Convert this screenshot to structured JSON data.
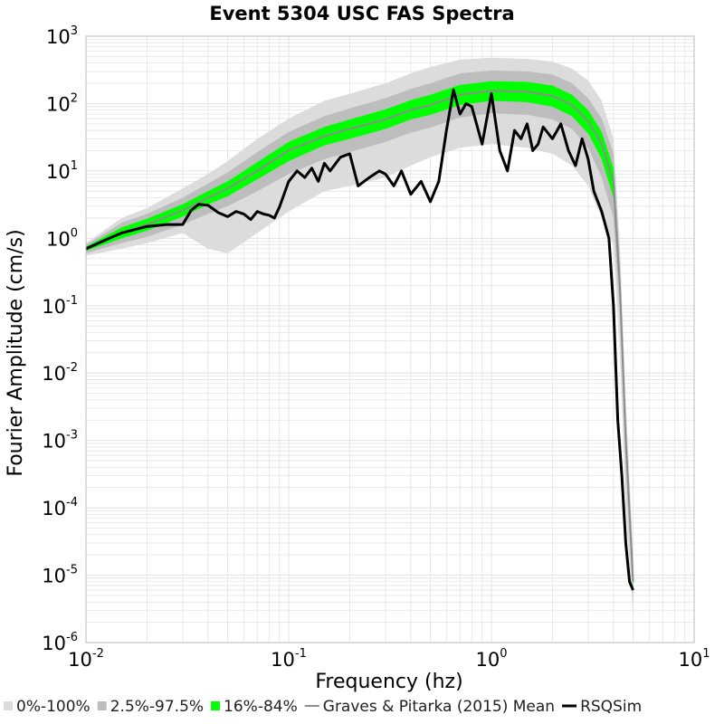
{
  "chart_data": {
    "type": "line",
    "title": "Event 5304 USC FAS Spectra",
    "xlabel": "Frequency (hz)",
    "ylabel": "Fourier Amplitude (cm/s)",
    "x_scale": "log",
    "y_scale": "log",
    "xlim": [
      0.01,
      10
    ],
    "ylim": [
      1e-06,
      1000
    ],
    "grid": true,
    "legend_position": "bottom",
    "x_ticks": [
      {
        "base": "10",
        "exp": "-2"
      },
      {
        "base": "10",
        "exp": "-1"
      },
      {
        "base": "10",
        "exp": "0"
      },
      {
        "base": "10",
        "exp": "1"
      }
    ],
    "y_ticks": [
      {
        "base": "10",
        "exp": "-6"
      },
      {
        "base": "10",
        "exp": "-5"
      },
      {
        "base": "10",
        "exp": "-4"
      },
      {
        "base": "10",
        "exp": "-3"
      },
      {
        "base": "10",
        "exp": "-2"
      },
      {
        "base": "10",
        "exp": "-1"
      },
      {
        "base": "10",
        "exp": "0"
      },
      {
        "base": "10",
        "exp": "1"
      },
      {
        "base": "10",
        "exp": "2"
      },
      {
        "base": "10",
        "exp": "3"
      }
    ],
    "colors": {
      "band_0_100": "#dcdcdc",
      "band_2_5_97_5": "#bdbdbd",
      "band_16_84": "#00ff00",
      "gp_mean": "#8c8c8c",
      "rsqsim": "#000000",
      "grid": "#e3e3e3"
    },
    "legend": [
      {
        "label": "0%-100%",
        "swatch": "square",
        "color": "#dcdcdc"
      },
      {
        "label": "2.5%-97.5%",
        "swatch": "square",
        "color": "#bdbdbd"
      },
      {
        "label": "16%-84%",
        "swatch": "square",
        "color": "#00ff00"
      },
      {
        "label": "Graves & Pitarka (2015) Mean",
        "swatch": "line",
        "color": "#8c8c8c"
      },
      {
        "label": "RSQSim",
        "swatch": "line",
        "color": "#000000"
      }
    ],
    "series": [
      {
        "name": "Graves & Pitarka (2015) Mean",
        "x": [
          0.01,
          0.015,
          0.02,
          0.03,
          0.04,
          0.05,
          0.07,
          0.1,
          0.15,
          0.2,
          0.3,
          0.4,
          0.5,
          0.7,
          1.0,
          1.5,
          2.0,
          2.5,
          3.0,
          3.5,
          4.0,
          4.3,
          4.6,
          5.0
        ],
        "y": [
          0.7,
          1.2,
          1.6,
          2.6,
          4.0,
          5.5,
          10,
          20,
          33,
          42,
          58,
          80,
          95,
          135,
          155,
          150,
          130,
          95,
          55,
          25,
          7,
          0.2,
          0.001,
          8e-06
        ]
      },
      {
        "name": "16%-84%",
        "x": [
          0.01,
          0.015,
          0.02,
          0.03,
          0.04,
          0.05,
          0.07,
          0.1,
          0.15,
          0.2,
          0.3,
          0.4,
          0.5,
          0.7,
          1.0,
          1.5,
          2.0,
          2.5,
          3.0,
          3.5,
          4.0,
          4.3,
          4.6,
          5.0
        ],
        "y_low": [
          0.65,
          1.0,
          1.3,
          2.1,
          3.2,
          4.2,
          7.5,
          14,
          24,
          30,
          42,
          58,
          68,
          95,
          110,
          105,
          90,
          65,
          36,
          15,
          4,
          0.12,
          0.0007,
          6e-06
        ],
        "y_high": [
          0.75,
          1.45,
          1.95,
          3.2,
          5.0,
          7.0,
          13.5,
          27,
          45,
          58,
          82,
          112,
          135,
          190,
          215,
          210,
          185,
          135,
          80,
          38,
          11,
          0.3,
          0.0015,
          1.1e-05
        ]
      },
      {
        "name": "2.5%-97.5%",
        "x": [
          0.01,
          0.015,
          0.02,
          0.03,
          0.04,
          0.05,
          0.07,
          0.1,
          0.15,
          0.2,
          0.3,
          0.4,
          0.5,
          0.7,
          1.0,
          1.5,
          2.0,
          2.5,
          3.0,
          3.5,
          4.0,
          4.3,
          4.6,
          5.0
        ],
        "y_low": [
          0.6,
          0.85,
          1.05,
          1.6,
          2.3,
          3.0,
          5.0,
          9,
          15,
          19,
          27,
          37,
          44,
          62,
          72,
          68,
          58,
          42,
          22,
          8,
          2,
          0.07,
          0.0004,
          4e-06
        ],
        "y_high": [
          0.8,
          1.7,
          2.3,
          4.0,
          6.5,
          9.5,
          19,
          38,
          65,
          85,
          120,
          165,
          200,
          280,
          310,
          300,
          270,
          200,
          120,
          60,
          18,
          0.45,
          0.0025,
          1.5e-05
        ]
      },
      {
        "name": "0%-100%",
        "x": [
          0.01,
          0.015,
          0.02,
          0.03,
          0.04,
          0.05,
          0.07,
          0.1,
          0.15,
          0.2,
          0.3,
          0.4,
          0.5,
          0.7,
          1.0,
          1.5,
          2.0,
          2.5,
          3.0,
          3.5,
          4.0,
          4.3,
          4.6,
          5.0
        ],
        "y_low": [
          0.55,
          0.7,
          0.85,
          1.2,
          0.7,
          0.6,
          1.2,
          2.5,
          5,
          6,
          8,
          12,
          16,
          22,
          25,
          22,
          18,
          12,
          6,
          2,
          0.8,
          0.02,
          0.0001,
          2.5e-06
        ],
        "y_high": [
          0.85,
          2.0,
          2.8,
          5.5,
          9,
          14,
          30,
          60,
          110,
          140,
          200,
          280,
          350,
          450,
          480,
          460,
          420,
          330,
          220,
          110,
          30,
          0.8,
          0.004,
          2e-05
        ]
      },
      {
        "name": "RSQSim",
        "x": [
          0.01,
          0.013,
          0.015,
          0.02,
          0.025,
          0.03,
          0.033,
          0.036,
          0.04,
          0.045,
          0.05,
          0.055,
          0.06,
          0.065,
          0.07,
          0.075,
          0.08,
          0.085,
          0.09,
          0.1,
          0.11,
          0.12,
          0.13,
          0.14,
          0.15,
          0.16,
          0.18,
          0.2,
          0.22,
          0.25,
          0.28,
          0.3,
          0.33,
          0.36,
          0.4,
          0.45,
          0.5,
          0.55,
          0.6,
          0.65,
          0.7,
          0.75,
          0.8,
          0.9,
          1.0,
          1.1,
          1.2,
          1.3,
          1.4,
          1.5,
          1.6,
          1.7,
          1.8,
          2.0,
          2.2,
          2.4,
          2.6,
          2.8,
          3.0,
          3.2,
          3.5,
          3.8,
          4.0,
          4.2,
          4.4,
          4.6,
          4.8,
          5.0
        ],
        "y": [
          0.7,
          1.0,
          1.2,
          1.5,
          1.6,
          1.6,
          2.6,
          3.2,
          3.1,
          2.4,
          2.1,
          2.5,
          2.3,
          1.9,
          2.5,
          2.3,
          2.2,
          2.0,
          2.9,
          7,
          10,
          8,
          11,
          7,
          13,
          10,
          16,
          18,
          6,
          8,
          10,
          9,
          6,
          10,
          4.5,
          7,
          3.5,
          7,
          40,
          160,
          70,
          100,
          90,
          25,
          140,
          20,
          10,
          40,
          30,
          50,
          20,
          25,
          45,
          30,
          50,
          20,
          12,
          30,
          15,
          5,
          2.5,
          1.0,
          0.1,
          0.002,
          0.0003,
          3e-05,
          8e-06,
          6e-06
        ]
      }
    ]
  }
}
